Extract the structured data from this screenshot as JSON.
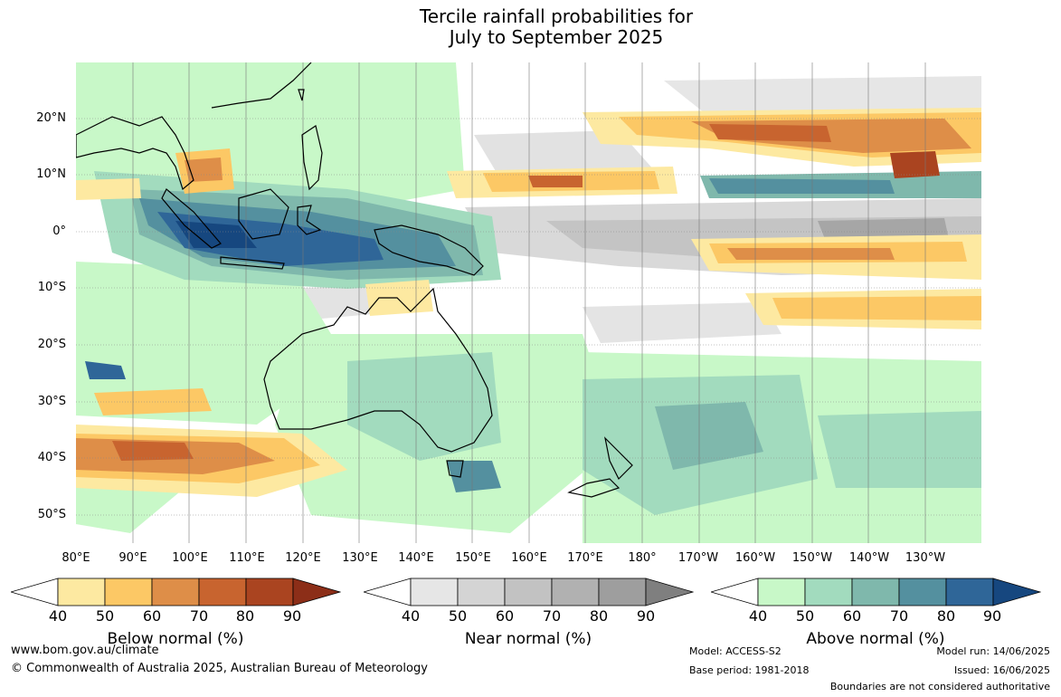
{
  "title": {
    "line1": "Tercile rainfall probabilities for",
    "line2": "July to September 2025"
  },
  "lat_labels": [
    "20°N",
    "10°N",
    "0°",
    "10°S",
    "20°S",
    "30°S",
    "40°S",
    "50°S"
  ],
  "lon_labels": [
    "80°E",
    "90°E",
    "100°E",
    "110°E",
    "120°E",
    "130°E",
    "140°E",
    "150°E",
    "160°E",
    "170°E",
    "180°",
    "170°W",
    "160°W",
    "150°W",
    "140°W",
    "130°W"
  ],
  "colorbars": [
    {
      "title": "Below normal (%)",
      "ticks": [
        "40",
        "50",
        "60",
        "70",
        "80",
        "90"
      ],
      "colors": [
        "#ffffff",
        "#fde9a1",
        "#fcc865",
        "#de8e48",
        "#c8642f",
        "#aa4420",
        "#8c2e18"
      ]
    },
    {
      "title": "Near normal (%)",
      "ticks": [
        "40",
        "50",
        "60",
        "70",
        "80",
        "90"
      ],
      "colors": [
        "#ffffff",
        "#e6e6e6",
        "#d4d4d4",
        "#c2c2c2",
        "#b1b1b1",
        "#9e9e9e",
        "#7f7f7f"
      ]
    },
    {
      "title": "Above normal (%)",
      "ticks": [
        "40",
        "50",
        "60",
        "70",
        "80",
        "90"
      ],
      "colors": [
        "#ffffff",
        "#c8f8c8",
        "#a2dbbe",
        "#7fb8ac",
        "#54909f",
        "#2f6698",
        "#16477f"
      ]
    }
  ],
  "footer": {
    "website": "www.bom.gov.au/climate",
    "copyright": "© Commonwealth of Australia 2025, Australian Bureau of Meteorology",
    "model": "Model: ACCESS-S2",
    "base_period": "Base period: 1981-2018",
    "model_run": "Model run: 14/06/2025",
    "issued": "Issued: 16/06/2025",
    "disclaimer": "Boundaries are not considered authoritative"
  }
}
